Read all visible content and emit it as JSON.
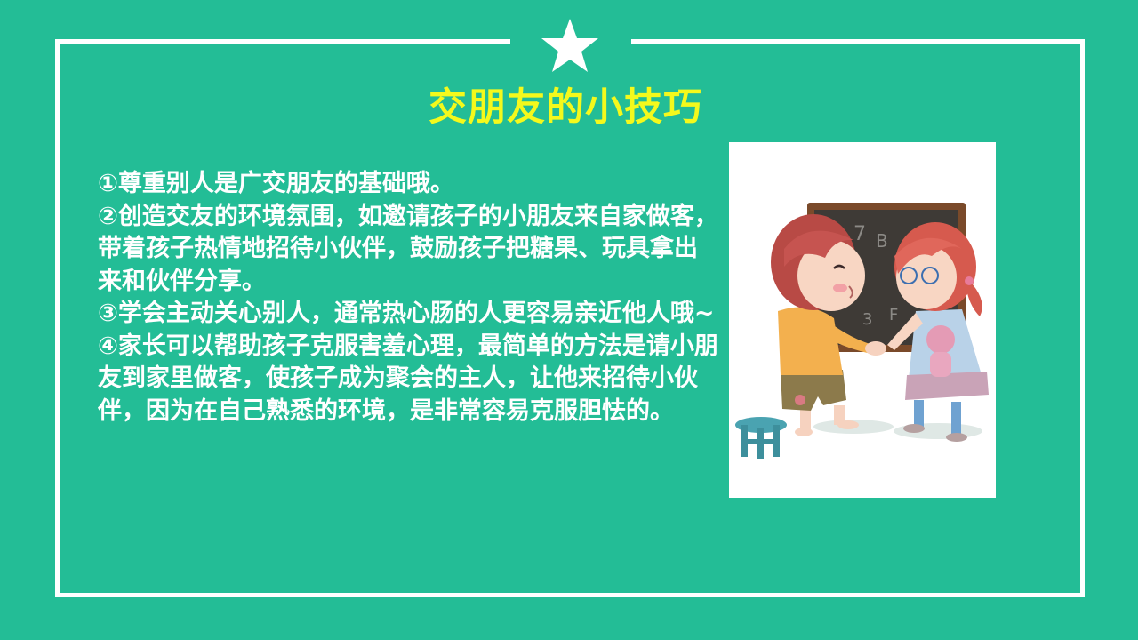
{
  "title": "交朋友的小技巧",
  "tips": [
    "①尊重别人是广交朋友的基础哦。",
    "②创造交友的环境氛围，如邀请孩子的小朋友来自家做客，带着孩子热情地招待小伙伴，鼓励孩子把糖果、玩具拿出来和伙伴分享。",
    "③学会主动关心别人，通常热心肠的人更容易亲近他人哦~",
    "④家长可以帮助孩子克服害羞心理，最简单的方法是请小朋友到家里做客，使孩子成为聚会的主人，让他来招待小伙伴，因为在自己熟悉的环境，是非常容易克服胆怯的。"
  ],
  "colors": {
    "background": "#23bd96",
    "title": "#f4f91c",
    "text": "#ffffff",
    "frame": "#ffffff"
  },
  "icons": [
    "star-icon"
  ]
}
